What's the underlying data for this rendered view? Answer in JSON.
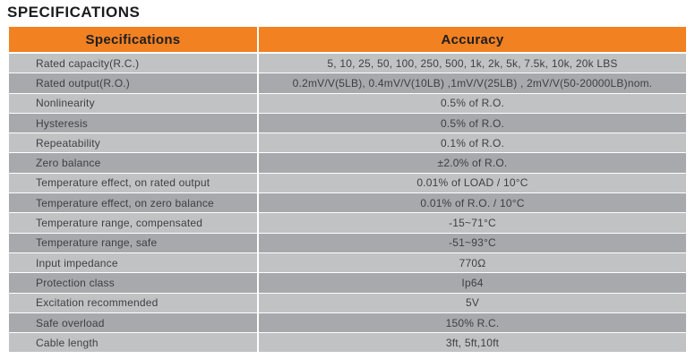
{
  "page_title": "SPECIFICATIONS",
  "colors": {
    "header_bg": "#f28122",
    "row_light": "#c0c2c4",
    "row_dark": "#a7a9ac"
  },
  "table": {
    "col_headers": {
      "specifications": "Specifications",
      "accuracy": "Accuracy"
    },
    "rows": [
      {
        "label": "Rated capacity(R.C.)",
        "value": "5, 10, 25, 50, 100, 250, 500, 1k, 2k, 5k, 7.5k, 10k, 20k LBS"
      },
      {
        "label": "Rated output(R.O.)",
        "value": "0.2mV/V(5LB), 0.4mV/V(10LB) ,1mV/V(25LB) , 2mV/V(50-20000LB)nom."
      },
      {
        "label": "Nonlinearity",
        "value": "0.5% of R.O."
      },
      {
        "label": "Hysteresis",
        "value": "0.5% of R.O."
      },
      {
        "label": "Repeatability",
        "value": "0.1% of R.O."
      },
      {
        "label": "Zero balance",
        "value": "±2.0% of R.O."
      },
      {
        "label": "Temperature effect, on rated output",
        "value": "0.01% of LOAD / 10°C"
      },
      {
        "label": "Temperature effect, on zero balance",
        "value": "0.01% of R.O. / 10°C"
      },
      {
        "label": "Temperature range, compensated",
        "value": "-15~71°C"
      },
      {
        "label": "Temperature range, safe",
        "value": "-51~93°C"
      },
      {
        "label": "Input impedance",
        "value": "770Ω"
      },
      {
        "label": "Protection class",
        "value": "Ip64"
      },
      {
        "label": "Excitation recommended",
        "value": "5V"
      },
      {
        "label": "Safe overload",
        "value": "150% R.C."
      },
      {
        "label": "Cable length",
        "value": "3ft, 5ft,10ft"
      }
    ]
  }
}
